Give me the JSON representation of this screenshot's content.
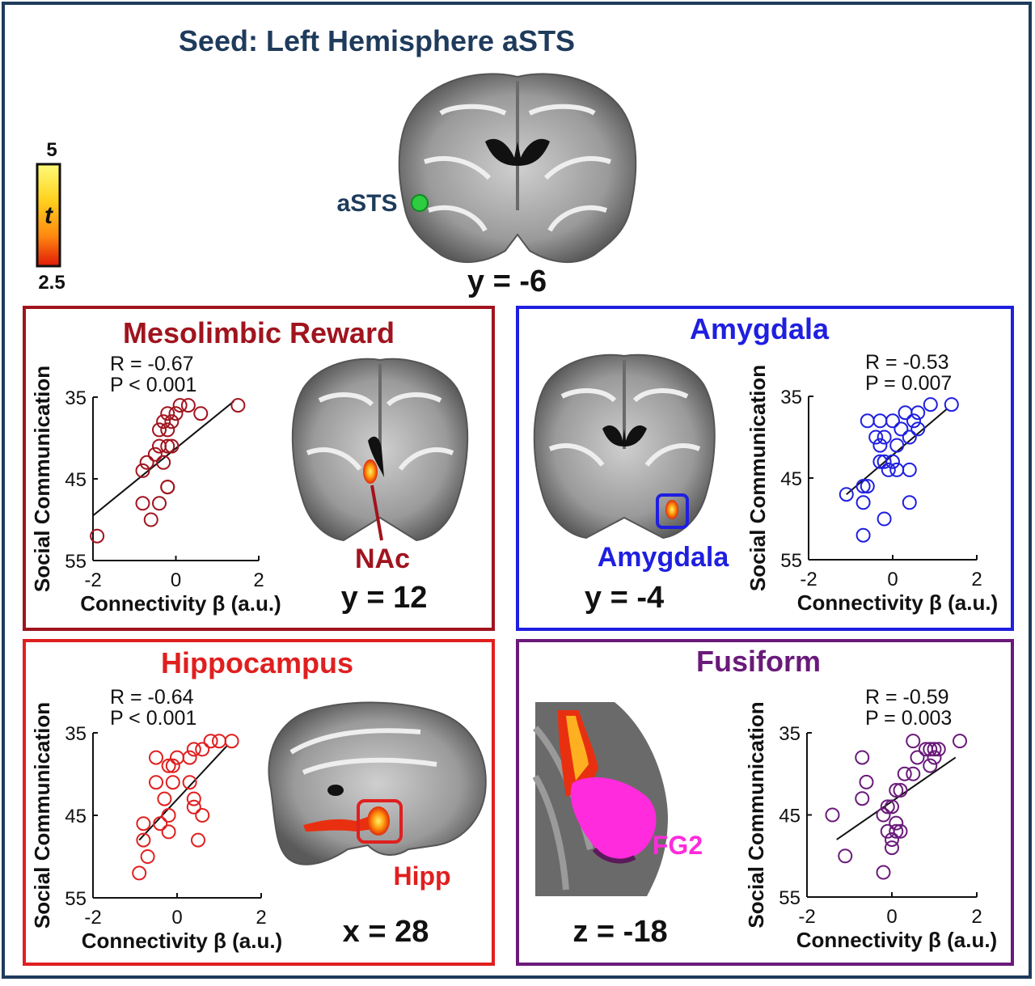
{
  "figure": {
    "title": "Seed: Left Hemisphere aSTS",
    "seed_label": "aSTS",
    "seed_slice": "y = -6",
    "colorbar": {
      "max": "5",
      "min": "2.5",
      "label": "t"
    }
  },
  "colors": {
    "frame": "#1f3b5c",
    "title": "#1f3b5c",
    "mesolimbic": "#a0141e",
    "amygdala": "#1f1fe0",
    "hippocampus": "#e01f1f",
    "fusiform": "#6a1a7a",
    "seed": "#2ecc40",
    "fg2": "#ff2bdc"
  },
  "panels": {
    "mesolimbic": {
      "title": "Mesolimbic Reward",
      "region_label": "NAc",
      "slice": "y = 12"
    },
    "amygdala": {
      "title": "Amygdala",
      "region_label": "Amygdala",
      "slice": "y = -4"
    },
    "hippocampus": {
      "title": "Hippocampus",
      "region_label": "Hipp",
      "slice": "x = 28"
    },
    "fusiform": {
      "title": "Fusiform",
      "region_label": "FG2",
      "slice": "z = -18"
    }
  },
  "chart_data": [
    {
      "type": "scatter",
      "panel": "mesolimbic",
      "title": "Mesolimbic Reward",
      "xlabel": "Connectivity β (a.u.)",
      "ylabel": "Social Communication",
      "xlim": [
        -2,
        2
      ],
      "ylim": [
        35,
        55
      ],
      "y_inverted": true,
      "xticks": [
        "-2",
        "0",
        "2"
      ],
      "yticks": [
        "35",
        "45",
        "55"
      ],
      "stats": [
        "R = -0.67",
        "P < 0.001"
      ],
      "fit": [
        [
          -2.0,
          49.5
        ],
        [
          1.4,
          35.5
        ]
      ],
      "points": [
        [
          -1.9,
          52
        ],
        [
          -0.8,
          48
        ],
        [
          -0.6,
          50
        ],
        [
          -0.4,
          48
        ],
        [
          -0.8,
          44
        ],
        [
          -0.7,
          43
        ],
        [
          -0.5,
          42
        ],
        [
          -0.3,
          43
        ],
        [
          -0.2,
          46
        ],
        [
          -0.2,
          46
        ],
        [
          -0.4,
          41
        ],
        [
          -0.2,
          41
        ],
        [
          -0.1,
          41
        ],
        [
          -0.4,
          39
        ],
        [
          -0.2,
          39
        ],
        [
          -0.3,
          38
        ],
        [
          -0.1,
          38
        ],
        [
          0.0,
          37
        ],
        [
          -0.2,
          37
        ],
        [
          0.1,
          36
        ],
        [
          0.3,
          36
        ],
        [
          0.6,
          37
        ],
        [
          1.5,
          36
        ]
      ]
    },
    {
      "type": "scatter",
      "panel": "amygdala",
      "title": "Amygdala",
      "xlabel": "Connectivity β (a.u.)",
      "ylabel": "Social Communication",
      "xlim": [
        -2,
        2
      ],
      "ylim": [
        35,
        55
      ],
      "y_inverted": true,
      "xticks": [
        "-2",
        "0",
        "2"
      ],
      "yticks": [
        "35",
        "45",
        "55"
      ],
      "stats": [
        "R = -0.53",
        "P = 0.007"
      ],
      "fit": [
        [
          -1.1,
          47
        ],
        [
          1.3,
          36.5
        ]
      ],
      "points": [
        [
          -1.1,
          47
        ],
        [
          -0.7,
          48
        ],
        [
          -0.7,
          46
        ],
        [
          -0.6,
          46
        ],
        [
          -0.7,
          52
        ],
        [
          -0.2,
          50
        ],
        [
          -0.1,
          44
        ],
        [
          -0.2,
          43
        ],
        [
          0.0,
          43
        ],
        [
          -0.3,
          43
        ],
        [
          -0.3,
          41
        ],
        [
          -0.4,
          40
        ],
        [
          -0.2,
          40
        ],
        [
          0.1,
          41
        ],
        [
          -0.3,
          38
        ],
        [
          0.0,
          38
        ],
        [
          0.2,
          39
        ],
        [
          0.4,
          40
        ],
        [
          0.6,
          39
        ],
        [
          0.5,
          38
        ],
        [
          0.3,
          37
        ],
        [
          0.6,
          37
        ],
        [
          0.9,
          36
        ],
        [
          1.4,
          36
        ],
        [
          -0.6,
          38
        ],
        [
          0.1,
          44
        ],
        [
          0.4,
          44
        ],
        [
          0.4,
          48
        ]
      ]
    },
    {
      "type": "scatter",
      "panel": "hippocampus",
      "title": "Hippocampus",
      "xlabel": "Connectivity β (a.u.)",
      "ylabel": "Social Communication",
      "xlim": [
        -2,
        2
      ],
      "ylim": [
        35,
        55
      ],
      "y_inverted": true,
      "xticks": [
        "-2",
        "0",
        "2"
      ],
      "yticks": [
        "35",
        "45",
        "55"
      ],
      "stats": [
        "R = -0.64",
        "P < 0.001"
      ],
      "fit": [
        [
          -0.9,
          48
        ],
        [
          1.2,
          36.5
        ]
      ],
      "points": [
        [
          -0.9,
          52
        ],
        [
          -0.7,
          50
        ],
        [
          -0.8,
          48
        ],
        [
          -0.8,
          46
        ],
        [
          -0.4,
          46
        ],
        [
          -0.2,
          47
        ],
        [
          -0.2,
          45
        ],
        [
          -0.3,
          43
        ],
        [
          -0.1,
          41
        ],
        [
          0.4,
          44
        ],
        [
          0.6,
          45
        ],
        [
          0.3,
          41
        ],
        [
          0.4,
          43
        ],
        [
          -0.5,
          41
        ],
        [
          -0.2,
          39
        ],
        [
          -0.1,
          39
        ],
        [
          -0.5,
          38
        ],
        [
          0.0,
          38
        ],
        [
          0.3,
          38
        ],
        [
          0.4,
          37
        ],
        [
          0.6,
          37
        ],
        [
          0.8,
          36
        ],
        [
          1.0,
          36
        ],
        [
          1.3,
          36
        ],
        [
          0.5,
          48
        ]
      ]
    },
    {
      "type": "scatter",
      "panel": "fusiform",
      "title": "Fusiform",
      "xlabel": "Connectivity β (a.u.)",
      "ylabel": "Social Communication",
      "xlim": [
        -2,
        2
      ],
      "ylim": [
        35,
        55
      ],
      "y_inverted": true,
      "xticks": [
        "-2",
        "0",
        "2"
      ],
      "yticks": [
        "35",
        "45",
        "55"
      ],
      "stats": [
        "R = -0.59",
        "P = 0.003"
      ],
      "fit": [
        [
          -1.3,
          48
        ],
        [
          1.5,
          38
        ]
      ],
      "points": [
        [
          -1.1,
          50
        ],
        [
          -1.4,
          45
        ],
        [
          -0.7,
          43
        ],
        [
          -0.6,
          41
        ],
        [
          -0.2,
          45
        ],
        [
          -0.1,
          44
        ],
        [
          0.0,
          44
        ],
        [
          -0.1,
          47
        ],
        [
          0.0,
          48
        ],
        [
          0.0,
          49
        ],
        [
          -0.2,
          52
        ],
        [
          0.1,
          47
        ],
        [
          0.1,
          46
        ],
        [
          0.2,
          47
        ],
        [
          0.1,
          42
        ],
        [
          0.2,
          42
        ],
        [
          0.3,
          40
        ],
        [
          0.5,
          40
        ],
        [
          0.6,
          38
        ],
        [
          0.9,
          39
        ],
        [
          1.0,
          38
        ],
        [
          1.0,
          37
        ],
        [
          1.1,
          37
        ],
        [
          0.9,
          37
        ],
        [
          0.5,
          36
        ],
        [
          0.8,
          37
        ],
        [
          1.6,
          36
        ],
        [
          -0.7,
          38
        ]
      ]
    }
  ]
}
